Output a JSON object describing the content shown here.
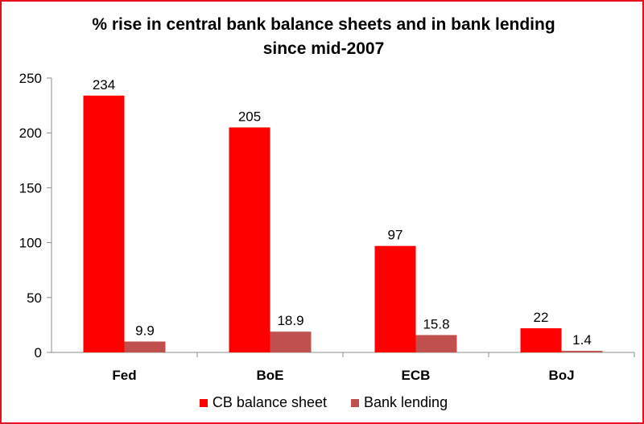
{
  "chart_data": {
    "type": "bar",
    "title": "% rise in central bank balance sheets and in bank lending",
    "subtitle": "since mid-2007",
    "xlabel": "",
    "ylabel": "",
    "categories": [
      "Fed",
      "BoE",
      "ECB",
      "BoJ"
    ],
    "series": [
      {
        "name": "CB balance sheet",
        "values": [
          234,
          205,
          97,
          22
        ],
        "labels": [
          "234",
          "205",
          "97",
          "22"
        ],
        "color": "#ff0000"
      },
      {
        "name": "Bank lending",
        "values": [
          9.9,
          18.9,
          15.8,
          1.4
        ],
        "labels": [
          "9.9",
          "18.9",
          "15.8",
          "1.4"
        ],
        "color": "#c0504d"
      }
    ],
    "ylim": [
      0,
      250
    ],
    "yticks": [
      "0",
      "50",
      "100",
      "150",
      "200",
      "250"
    ],
    "grid": false,
    "legend_position": "bottom"
  }
}
